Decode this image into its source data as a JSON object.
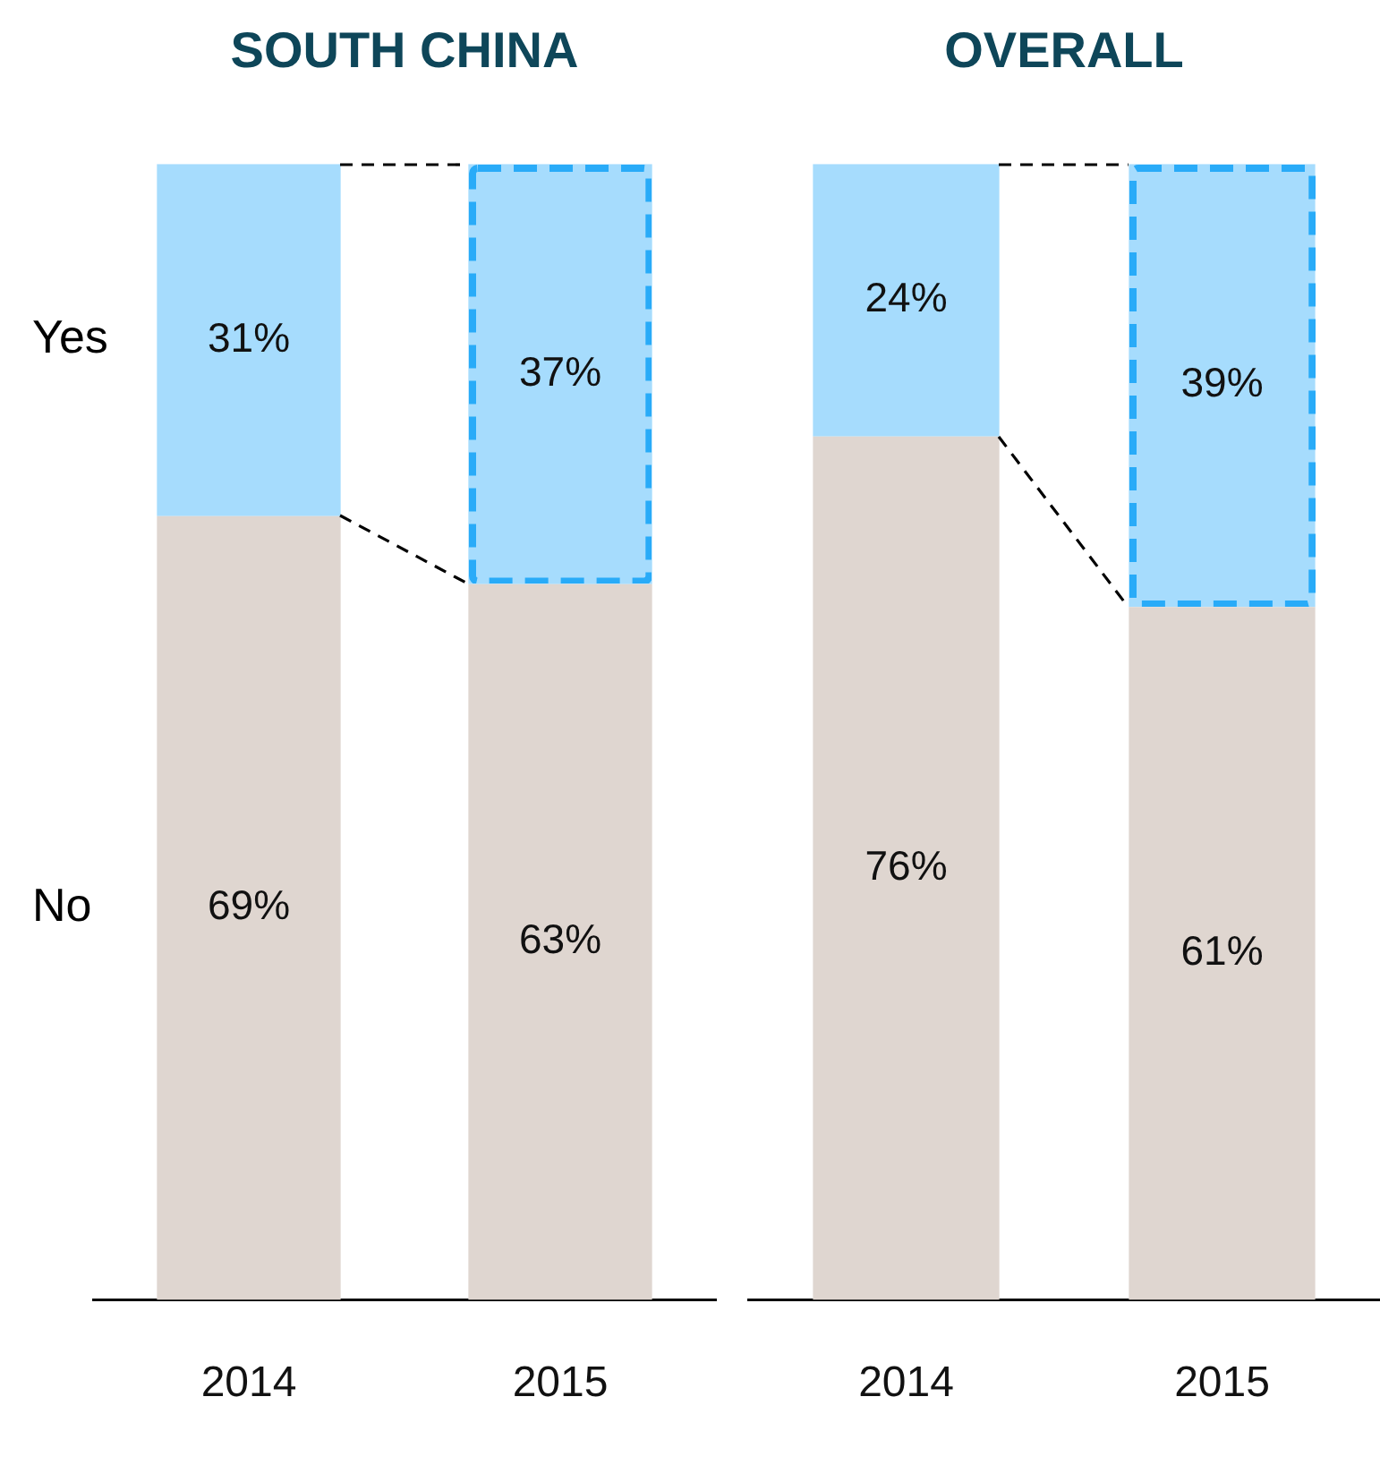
{
  "chart_data": [
    {
      "type": "bar",
      "title": "SOUTH CHINA",
      "categories": [
        "2014",
        "2015"
      ],
      "stacked": true,
      "ylim": [
        0,
        100
      ],
      "tick_labels": "x",
      "series": [
        {
          "name": "No",
          "color": "#dfd6d0",
          "values": [
            69,
            63
          ],
          "value_labels": [
            "69%",
            "63%"
          ]
        },
        {
          "name": "Yes",
          "color": "#a6dcfd",
          "values": [
            31,
            37
          ],
          "value_labels": [
            "31%",
            "37%"
          ]
        }
      ]
    },
    {
      "type": "bar",
      "title": "OVERALL",
      "categories": [
        "2014",
        "2015"
      ],
      "stacked": true,
      "ylim": [
        0,
        100
      ],
      "tick_labels": "x",
      "series": [
        {
          "color": "#dfd6d0",
          "values": [
            76,
            61
          ],
          "value_labels": [
            "76%",
            "61%"
          ]
        },
        {
          "color": "#a6dcfd",
          "values": [
            24,
            39
          ],
          "value_labels": [
            "24%",
            "39%"
          ]
        }
      ]
    }
  ]
}
